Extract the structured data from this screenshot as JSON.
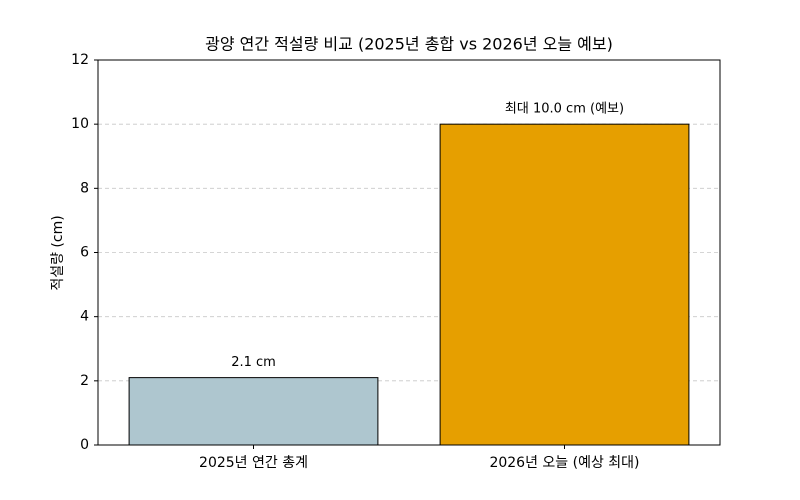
{
  "chart_data": {
    "type": "bar",
    "title": "광양 연간 적설량 비교 (2025년 총합 vs 2026년 오늘 예보)",
    "y_label": "적설량 (cm)",
    "categories": [
      "2025년 연간 총계",
      "2026년 오늘 (예상 최대)"
    ],
    "values": [
      2.1,
      10.0
    ],
    "value_labels": [
      "2.1 cm",
      "최대 10.0 cm (예보)"
    ],
    "colors": [
      "#aec6cf",
      "#e69f00"
    ],
    "ylim": [
      0,
      12
    ],
    "yticks": [
      0,
      2,
      4,
      6,
      8,
      10,
      12
    ],
    "grid": true
  }
}
